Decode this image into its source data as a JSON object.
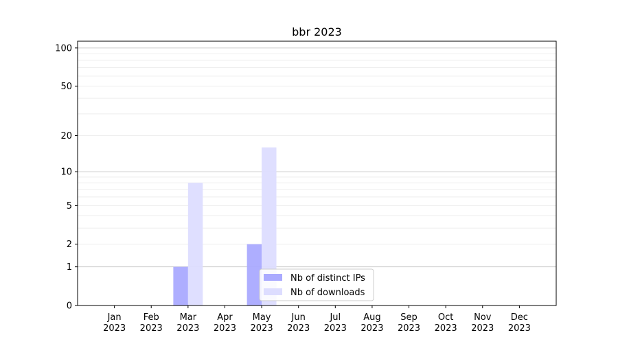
{
  "chart_data": {
    "type": "bar",
    "title": "bbr 2023",
    "xlabel": "",
    "ylabel": "",
    "yscale": "log(1+y)",
    "ylim": [
      0,
      113
    ],
    "yticks": [
      0,
      1,
      2,
      5,
      10,
      20,
      50,
      100
    ],
    "grid": true,
    "legend_placement": "lower-center",
    "categories": [
      "Jan\n2023",
      "Feb\n2023",
      "Mar\n2023",
      "Apr\n2023",
      "May\n2023",
      "Jun\n2023",
      "Jul\n2023",
      "Aug\n2023",
      "Sep\n2023",
      "Oct\n2023",
      "Nov\n2023",
      "Dec\n2023"
    ],
    "series": [
      {
        "name": "Nb of distinct IPs",
        "color": "#aaaaff",
        "values": [
          0,
          0,
          1,
          0,
          2,
          0,
          0,
          0,
          0,
          0,
          0,
          0
        ]
      },
      {
        "name": "Nb of downloads",
        "color": "#ddddff",
        "values": [
          0,
          0,
          8,
          0,
          16,
          0,
          0,
          0,
          0,
          0,
          0,
          0
        ]
      }
    ]
  }
}
